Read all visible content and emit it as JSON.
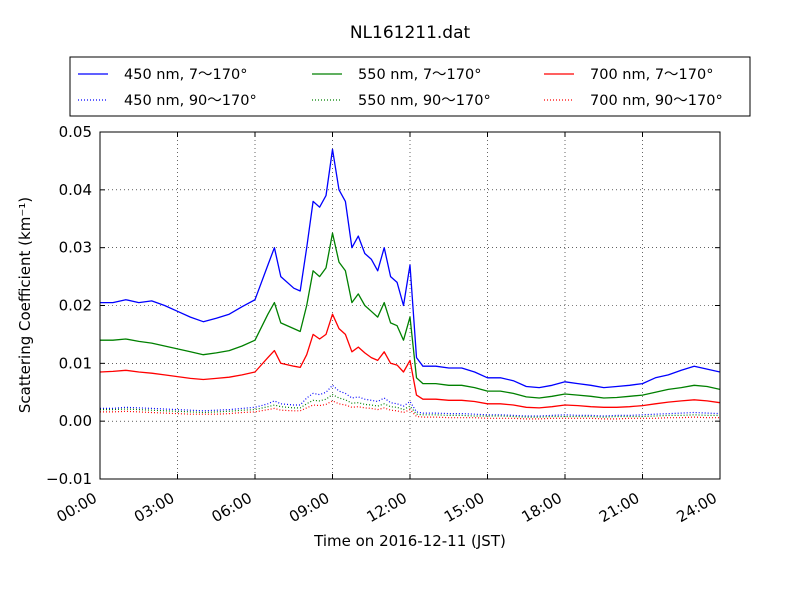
{
  "chart_data": {
    "type": "line",
    "title": "NL161211.dat",
    "xlabel": "Time on 2016-12-11 (JST)",
    "ylabel": "Scattering Coefficient (km⁻¹)",
    "xlim": [
      0,
      24
    ],
    "ylim": [
      -0.01,
      0.05
    ],
    "x_ticks": [
      "00:00",
      "03:00",
      "06:00",
      "09:00",
      "12:00",
      "15:00",
      "18:00",
      "21:00",
      "24:00"
    ],
    "y_ticks": [
      "−0.01",
      "0.00",
      "0.01",
      "0.02",
      "0.03",
      "0.04",
      "0.05"
    ],
    "grid": true,
    "legend_placement": "top",
    "x": [
      0,
      0.5,
      1,
      1.5,
      2,
      2.5,
      3,
      3.5,
      4,
      4.5,
      5,
      5.5,
      6,
      6.5,
      6.75,
      7,
      7.5,
      7.75,
      8,
      8.25,
      8.5,
      8.75,
      9,
      9.25,
      9.5,
      9.75,
      10,
      10.25,
      10.5,
      10.75,
      11,
      11.25,
      11.5,
      11.75,
      12,
      12.25,
      12.5,
      13,
      13.5,
      14,
      14.5,
      15,
      15.5,
      16,
      16.5,
      17,
      17.5,
      18,
      18.5,
      19,
      19.5,
      20,
      20.5,
      21,
      21.5,
      22,
      22.5,
      23,
      23.5,
      24
    ],
    "series": [
      {
        "name": "450 nm, 7～170°",
        "color": "#0000ff",
        "style": "solid",
        "values": [
          0.0205,
          0.0205,
          0.021,
          0.0205,
          0.0208,
          0.02,
          0.019,
          0.018,
          0.0172,
          0.0178,
          0.0185,
          0.0198,
          0.021,
          0.027,
          0.03,
          0.025,
          0.023,
          0.0225,
          0.03,
          0.038,
          0.037,
          0.039,
          0.047,
          0.04,
          0.038,
          0.03,
          0.032,
          0.029,
          0.028,
          0.026,
          0.03,
          0.025,
          0.024,
          0.02,
          0.027,
          0.011,
          0.0095,
          0.0095,
          0.0092,
          0.0092,
          0.0085,
          0.0075,
          0.0075,
          0.007,
          0.006,
          0.0058,
          0.0062,
          0.0068,
          0.0065,
          0.0062,
          0.0058,
          0.006,
          0.0062,
          0.0065,
          0.0075,
          0.008,
          0.0088,
          0.0095,
          0.009,
          0.0085
        ]
      },
      {
        "name": "450 nm, 90～170°",
        "color": "#0000ff",
        "style": "dotted",
        "values": [
          0.0022,
          0.0022,
          0.0024,
          0.0023,
          0.0022,
          0.0021,
          0.002,
          0.0019,
          0.0018,
          0.0019,
          0.002,
          0.0022,
          0.0024,
          0.003,
          0.0035,
          0.003,
          0.0028,
          0.0028,
          0.004,
          0.0048,
          0.0046,
          0.005,
          0.0062,
          0.0052,
          0.0048,
          0.004,
          0.0042,
          0.0038,
          0.0036,
          0.0034,
          0.004,
          0.0032,
          0.003,
          0.0026,
          0.0034,
          0.0016,
          0.0014,
          0.0014,
          0.0013,
          0.0013,
          0.0012,
          0.0011,
          0.0011,
          0.001,
          0.0009,
          0.0009,
          0.001,
          0.0011,
          0.001,
          0.001,
          0.0009,
          0.001,
          0.001,
          0.0011,
          0.0012,
          0.0013,
          0.0014,
          0.0015,
          0.0014,
          0.0013
        ]
      },
      {
        "name": "550 nm, 7～170°",
        "color": "#008000",
        "style": "solid",
        "values": [
          0.014,
          0.014,
          0.0142,
          0.0138,
          0.0135,
          0.013,
          0.0125,
          0.012,
          0.0115,
          0.0118,
          0.0122,
          0.013,
          0.014,
          0.0185,
          0.0205,
          0.017,
          0.016,
          0.0155,
          0.02,
          0.026,
          0.025,
          0.0265,
          0.0325,
          0.0275,
          0.026,
          0.0205,
          0.022,
          0.02,
          0.019,
          0.018,
          0.0205,
          0.017,
          0.0165,
          0.014,
          0.018,
          0.0075,
          0.0065,
          0.0065,
          0.0062,
          0.0062,
          0.0058,
          0.0052,
          0.0052,
          0.0048,
          0.0042,
          0.004,
          0.0043,
          0.0047,
          0.0045,
          0.0043,
          0.004,
          0.0041,
          0.0043,
          0.0045,
          0.005,
          0.0055,
          0.0058,
          0.0062,
          0.006,
          0.0055
        ]
      },
      {
        "name": "550 nm, 90～170°",
        "color": "#008000",
        "style": "dotted",
        "values": [
          0.002,
          0.002,
          0.0021,
          0.002,
          0.0019,
          0.0018,
          0.0017,
          0.0016,
          0.0015,
          0.0016,
          0.0017,
          0.0019,
          0.002,
          0.0025,
          0.0028,
          0.0025,
          0.0023,
          0.0023,
          0.003,
          0.0036,
          0.0035,
          0.0038,
          0.0046,
          0.004,
          0.0037,
          0.0031,
          0.0032,
          0.0029,
          0.0028,
          0.0026,
          0.003,
          0.0025,
          0.0024,
          0.002,
          0.0026,
          0.0012,
          0.0011,
          0.0011,
          0.001,
          0.001,
          0.0009,
          0.0009,
          0.0009,
          0.0008,
          0.0007,
          0.0007,
          0.0008,
          0.0008,
          0.0008,
          0.0008,
          0.0007,
          0.0008,
          0.0008,
          0.0008,
          0.0009,
          0.001,
          0.001,
          0.0011,
          0.001,
          0.001
        ]
      },
      {
        "name": "700 nm, 7～170°",
        "color": "#ff0000",
        "style": "solid",
        "values": [
          0.0085,
          0.0086,
          0.0088,
          0.0085,
          0.0083,
          0.008,
          0.0077,
          0.0074,
          0.0072,
          0.0074,
          0.0076,
          0.008,
          0.0085,
          0.011,
          0.0122,
          0.01,
          0.0095,
          0.0093,
          0.0115,
          0.015,
          0.0142,
          0.015,
          0.0185,
          0.016,
          0.015,
          0.012,
          0.0128,
          0.0118,
          0.011,
          0.0105,
          0.012,
          0.01,
          0.0097,
          0.0085,
          0.0105,
          0.0045,
          0.0038,
          0.0038,
          0.0036,
          0.0036,
          0.0034,
          0.003,
          0.003,
          0.0028,
          0.0024,
          0.0023,
          0.0025,
          0.0028,
          0.0027,
          0.0025,
          0.0024,
          0.0024,
          0.0025,
          0.0027,
          0.003,
          0.0033,
          0.0035,
          0.0037,
          0.0035,
          0.0032
        ]
      },
      {
        "name": "700 nm, 90～170°",
        "color": "#ff0000",
        "style": "dotted",
        "values": [
          0.0016,
          0.0016,
          0.0017,
          0.0016,
          0.0015,
          0.0014,
          0.0013,
          0.0012,
          0.0012,
          0.0012,
          0.0013,
          0.0015,
          0.0016,
          0.002,
          0.0022,
          0.0019,
          0.0018,
          0.0018,
          0.0023,
          0.0028,
          0.0027,
          0.0029,
          0.0035,
          0.003,
          0.0028,
          0.0024,
          0.0025,
          0.0023,
          0.0022,
          0.002,
          0.0023,
          0.0019,
          0.0018,
          0.0015,
          0.002,
          0.0008,
          0.0007,
          0.0007,
          0.0006,
          0.0006,
          0.0006,
          0.0005,
          0.0005,
          0.0005,
          0.0004,
          0.0004,
          0.0005,
          0.0005,
          0.0005,
          0.0005,
          0.0004,
          0.0004,
          0.0005,
          0.0005,
          0.0005,
          0.0006,
          0.0006,
          0.0007,
          0.0006,
          0.0006
        ]
      }
    ]
  }
}
